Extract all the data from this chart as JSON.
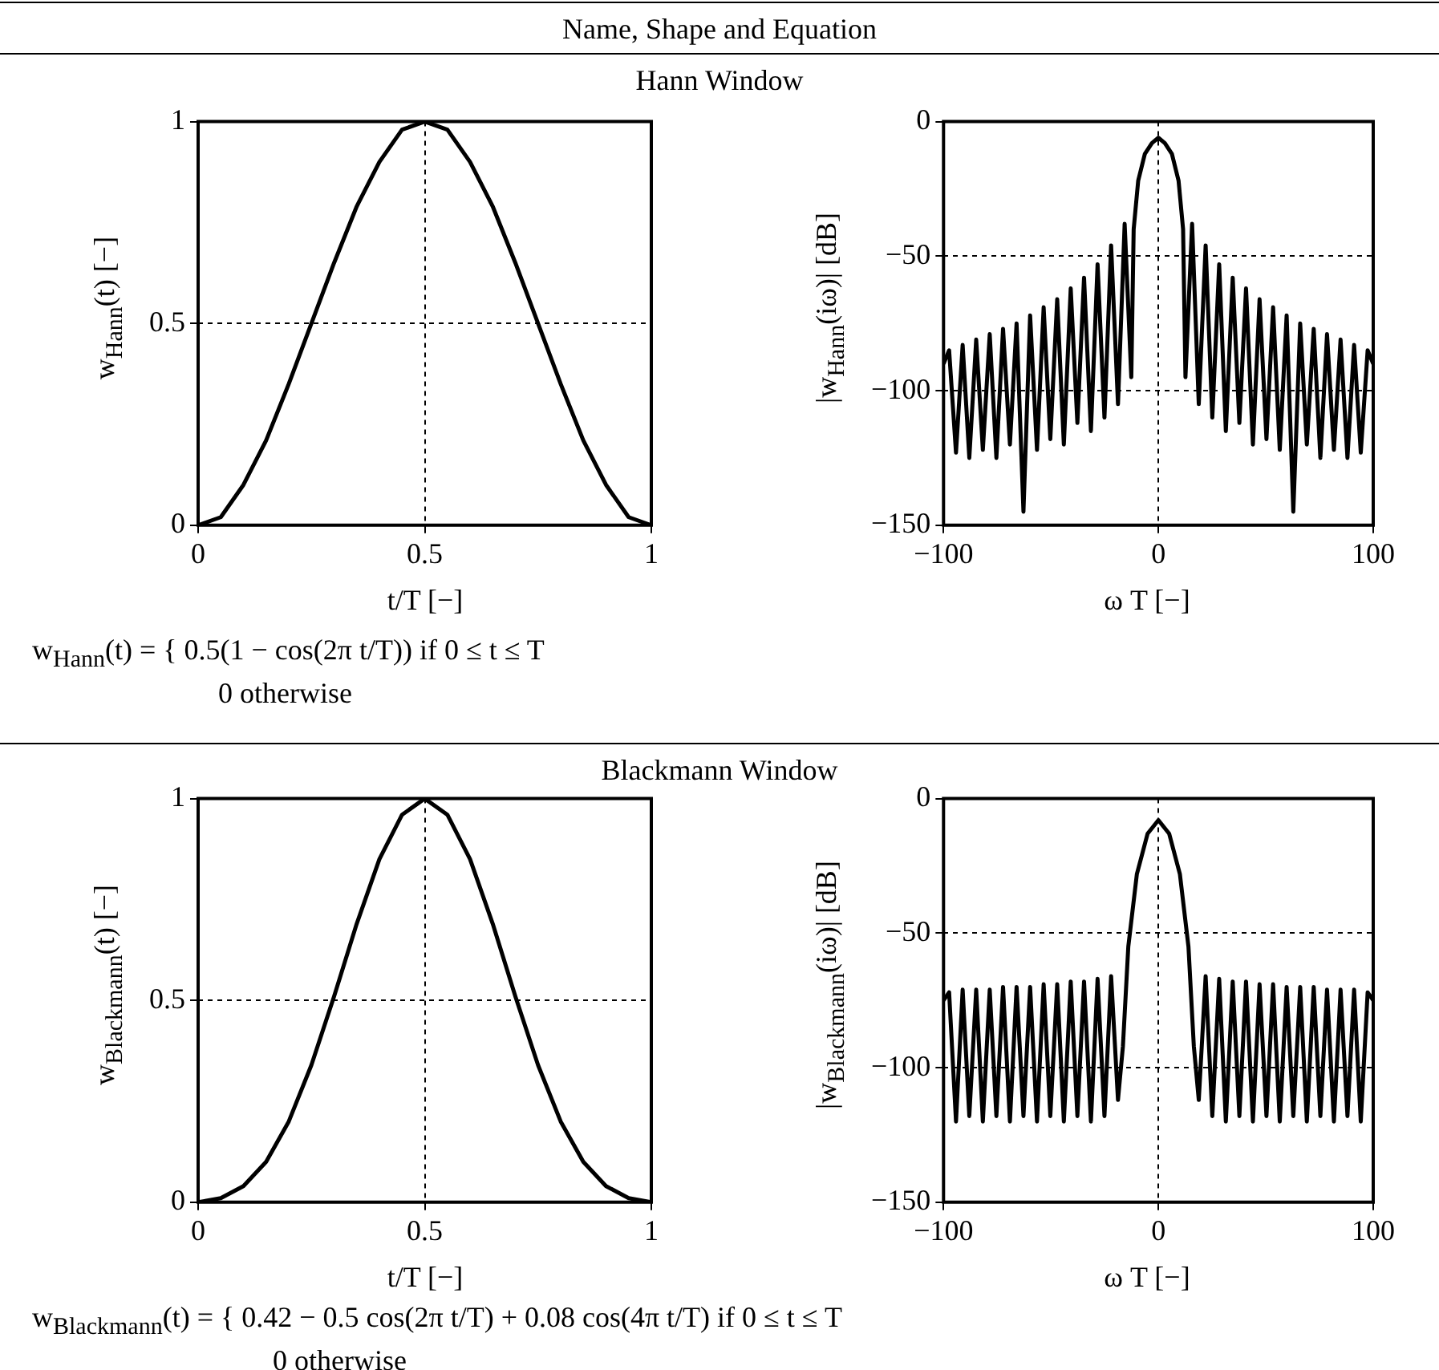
{
  "chart_data": [
    {
      "type": "line",
      "title": "Hann Window",
      "xlabel": "t/T [−]",
      "ylabel": "w$_{Hann}$(t) [−]",
      "color": "#000000",
      "grid": true,
      "xlim": [
        0,
        1
      ],
      "xticks": [
        0,
        0.5,
        1
      ],
      "ylim": [
        0,
        1
      ],
      "yticks": [
        0,
        0.5,
        1
      ],
      "x": [
        0,
        0.05,
        0.1,
        0.15,
        0.2,
        0.25,
        0.3,
        0.35,
        0.4,
        0.45,
        0.5,
        0.55,
        0.6,
        0.65,
        0.7,
        0.75,
        0.8,
        0.85,
        0.9,
        0.95,
        1
      ],
      "values": [
        0,
        0.02,
        0.1,
        0.21,
        0.35,
        0.5,
        0.65,
        0.79,
        0.9,
        0.98,
        1,
        0.98,
        0.9,
        0.79,
        0.65,
        0.5,
        0.35,
        0.21,
        0.1,
        0.02,
        0
      ],
      "annotations": [
        "Name, Shape and Equation",
        "w$_{Hann}$(t) = { 0.5(1 − cos(2π t/T)) if 0 ≤ t ≤ T\n0 otherwise"
      ]
    },
    {
      "type": "line",
      "xlabel": "ω T [−]",
      "ylabel": "|w$_{Hann}$(iω)| [dB]",
      "color": "#000000",
      "grid": true,
      "xlim": [
        -100,
        100
      ],
      "xticks": [
        -100,
        0,
        100
      ],
      "ylim": [
        -150,
        0
      ],
      "yticks": [
        -150,
        -100,
        -50,
        0
      ],
      "x": [
        -100,
        -97.4,
        -94.2,
        -91.1,
        -88,
        -84.8,
        -81.7,
        -78.5,
        -75.4,
        -72.3,
        -69.1,
        -66,
        -62.8,
        -59.7,
        -56.5,
        -53.4,
        -50.3,
        -47.1,
        -44,
        -40.8,
        -37.7,
        -34.6,
        -31.4,
        -28.3,
        -25.1,
        -22,
        -18.8,
        -15.7,
        -12.6,
        -11.5,
        -9.4,
        -6.3,
        -3,
        0,
        3,
        6.3,
        9.4,
        11.5,
        12.6,
        15.7,
        18.8,
        22,
        25.1,
        28.3,
        31.4,
        34.6,
        37.7,
        40.8,
        44,
        47.1,
        50.3,
        53.4,
        56.5,
        59.7,
        62.8,
        66,
        69.1,
        72.3,
        75.4,
        78.5,
        81.7,
        84.8,
        88,
        91.1,
        94.2,
        97.4,
        100
      ],
      "values": [
        -90,
        -85,
        -123,
        -83,
        -125,
        -81,
        -122,
        -79,
        -125,
        -77,
        -120,
        -75,
        -145,
        -72,
        -122,
        -69,
        -118,
        -66,
        -120,
        -62,
        -112,
        -58,
        -115,
        -53,
        -110,
        -46,
        -105,
        -38,
        -95,
        -40,
        -22,
        -12,
        -8,
        -6,
        -8,
        -12,
        -22,
        -40,
        -95,
        -38,
        -105,
        -46,
        -110,
        -53,
        -115,
        -58,
        -112,
        -62,
        -120,
        -66,
        -118,
        -69,
        -122,
        -72,
        -145,
        -75,
        -120,
        -77,
        -125,
        -79,
        -122,
        -81,
        -125,
        -83,
        -123,
        -85,
        -90
      ]
    },
    {
      "type": "line",
      "title": "Blackmann Window",
      "xlabel": "t/T [−]",
      "ylabel": "w$_{Blackmann}$(t) [−]",
      "color": "#000000",
      "grid": true,
      "xlim": [
        0,
        1
      ],
      "xticks": [
        0,
        0.5,
        1
      ],
      "ylim": [
        0,
        1
      ],
      "yticks": [
        0,
        0.5,
        1
      ],
      "x": [
        0,
        0.05,
        0.1,
        0.15,
        0.2,
        0.25,
        0.3,
        0.35,
        0.4,
        0.45,
        0.5,
        0.55,
        0.6,
        0.65,
        0.7,
        0.75,
        0.8,
        0.85,
        0.9,
        0.95,
        1
      ],
      "values": [
        0,
        0.01,
        0.04,
        0.1,
        0.2,
        0.34,
        0.51,
        0.69,
        0.85,
        0.96,
        1,
        0.96,
        0.85,
        0.69,
        0.51,
        0.34,
        0.2,
        0.1,
        0.04,
        0.01,
        0
      ],
      "annotations": [
        "w$_{Blackmann}$(t) = { 0.42 − 0.5 cos(2π t/T) + 0.08 cos(4π t/T) if 0 ≤ t ≤ T\n0 otherwise"
      ]
    },
    {
      "type": "line",
      "xlabel": "ω T [−]",
      "ylabel": "|w$_{Blackmann}$(iω)| [dB]",
      "color": "#000000",
      "grid": true,
      "xlim": [
        -100,
        100
      ],
      "xticks": [
        -100,
        0,
        100
      ],
      "ylim": [
        -150,
        0
      ],
      "yticks": [
        -150,
        -100,
        -50,
        0
      ],
      "x": [
        -100,
        -97.4,
        -94.2,
        -91.1,
        -88,
        -84.8,
        -81.7,
        -78.5,
        -75.4,
        -72.3,
        -69.1,
        -66,
        -62.8,
        -59.7,
        -56.5,
        -53.4,
        -50.3,
        -47.1,
        -44,
        -40.8,
        -37.7,
        -34.6,
        -31.4,
        -28.3,
        -25.1,
        -22,
        -18.8,
        -16.5,
        -14,
        -10,
        -5,
        0,
        5,
        10,
        14,
        16.5,
        18.8,
        22,
        25.1,
        28.3,
        31.4,
        34.6,
        37.7,
        40.8,
        44,
        47.1,
        50.3,
        53.4,
        56.5,
        59.7,
        62.8,
        66,
        69.1,
        72.3,
        75.4,
        78.5,
        81.7,
        84.8,
        88,
        91.1,
        94.2,
        97.4,
        100
      ],
      "values": [
        -75,
        -72,
        -120,
        -71,
        -118,
        -71,
        -120,
        -71,
        -118,
        -70,
        -120,
        -70,
        -118,
        -70,
        -120,
        -69,
        -118,
        -69,
        -120,
        -68,
        -118,
        -68,
        -120,
        -67,
        -118,
        -66,
        -112,
        -92,
        -55,
        -28,
        -13,
        -8,
        -13,
        -28,
        -55,
        -92,
        -112,
        -66,
        -118,
        -67,
        -120,
        -68,
        -118,
        -68,
        -120,
        -69,
        -118,
        -69,
        -120,
        -70,
        -118,
        -70,
        -120,
        -70,
        -118,
        -71,
        -120,
        -71,
        -118,
        -71,
        -120,
        -72,
        -75
      ]
    }
  ]
}
